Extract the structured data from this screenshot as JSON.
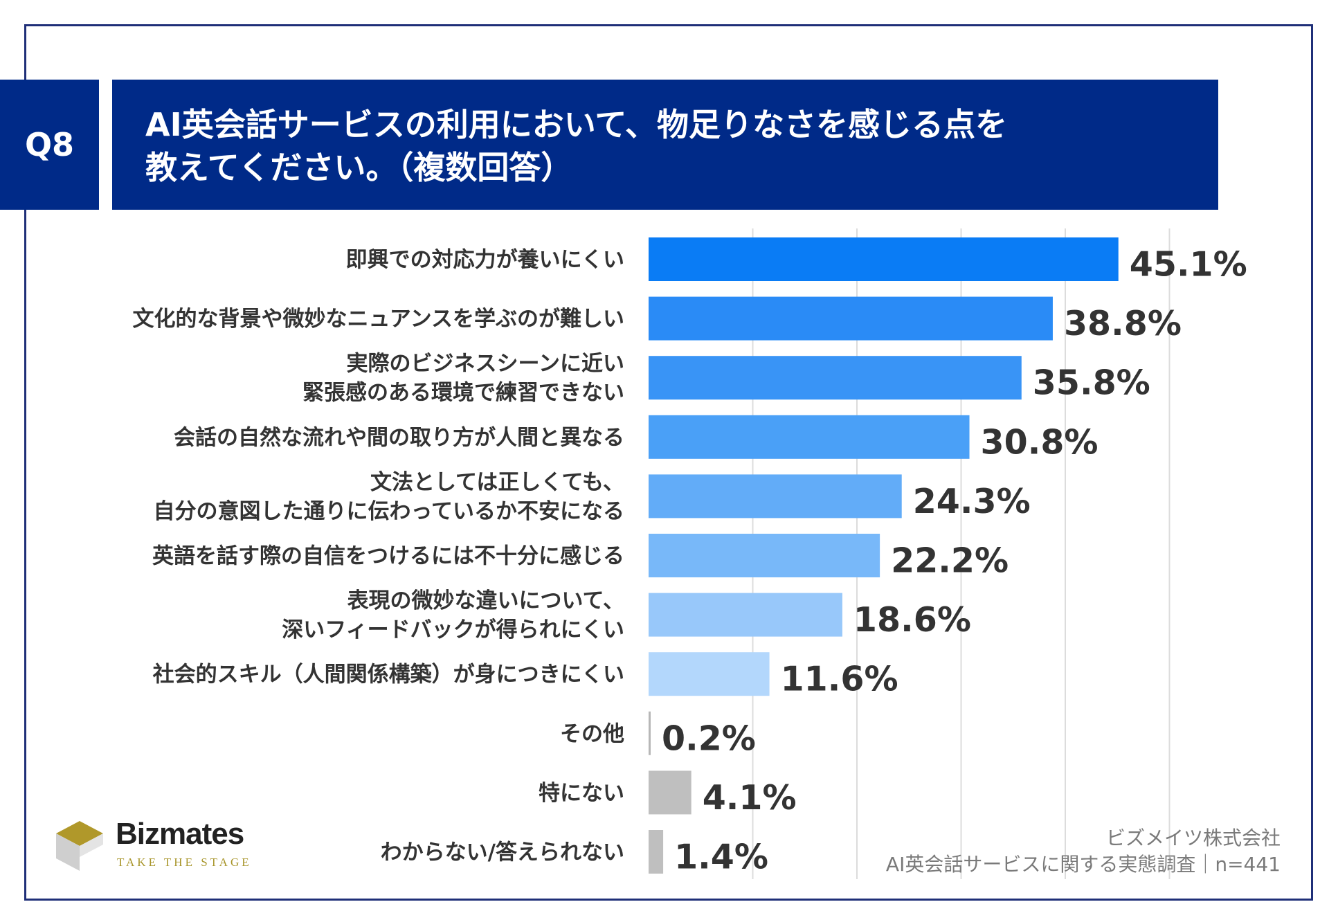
{
  "header": {
    "badge": "Q8",
    "title_line1": "AI英会話サービスの利用において、物足りなさを感じる点を",
    "title_line2": "教えてください。（複数回答）"
  },
  "chart_data": {
    "type": "bar",
    "orientation": "horizontal",
    "unit": "%",
    "categories": [
      [
        "即興での対応力が養いにくい"
      ],
      [
        "文化的な背景や微妙なニュアンスを学ぶのが難しい"
      ],
      [
        "実際のビジネスシーンに近い",
        "緊張感のある環境で練習できない"
      ],
      [
        "会話の自然な流れや間の取り方が人間と異なる"
      ],
      [
        "文法としては正しくても、",
        "自分の意図した通りに伝わっているか不安になる"
      ],
      [
        "英語を話す際の自信をつけるには不十分に感じる"
      ],
      [
        "表現の微妙な違いについて、",
        "深いフィードバックが得られにくい"
      ],
      [
        "社会的スキル（人間関係構築）が身につきにくい"
      ],
      [
        "その他"
      ],
      [
        "特にない"
      ],
      [
        "わからない/答えられない"
      ]
    ],
    "values": [
      45.1,
      38.8,
      35.8,
      30.8,
      24.3,
      22.2,
      18.6,
      11.6,
      0.2,
      4.1,
      1.4
    ],
    "value_labels": [
      "45.1%",
      "38.8%",
      "35.8%",
      "30.8%",
      "24.3%",
      "22.2%",
      "18.6%",
      "11.6%",
      "0.2%",
      "4.1%",
      "1.4%"
    ],
    "colors": [
      "#0a7cf5",
      "#2a8bf6",
      "#3994f6",
      "#4aa0f7",
      "#62acf8",
      "#78b8f9",
      "#98c8fa",
      "#b3d7fc",
      "#b7b7b7",
      "#bfbfbf",
      "#bfbfbf"
    ],
    "xlim": [
      0,
      50
    ],
    "gridlines": [
      10,
      20,
      30,
      40,
      50
    ],
    "grid": true,
    "gridline_color": "#dcdcdc"
  },
  "logo": {
    "name": "Bizmates",
    "tagline": "TAKE THE STAGE"
  },
  "source": {
    "line1": "ビズメイツ株式会社",
    "line2": "AI英会話サービスに関する実態調査｜n=441"
  }
}
